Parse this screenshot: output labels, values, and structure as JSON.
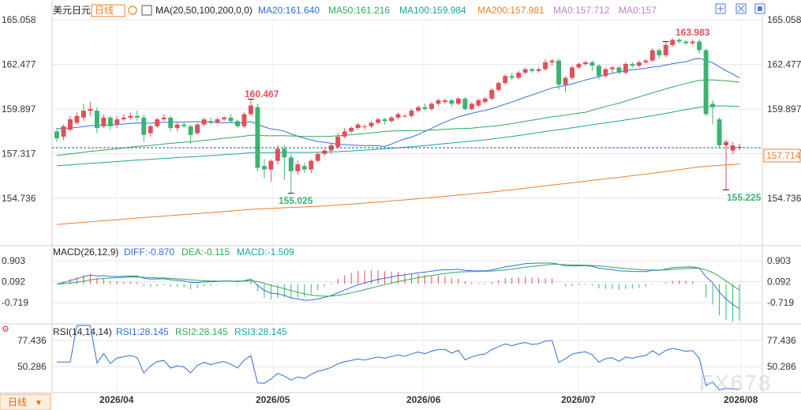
{
  "header": {
    "symbol": "美元日元",
    "period": "日线",
    "ma_label": "MA(20,50,100,200,0,0)",
    "ma20": "MA20:161.640",
    "ma50": "MA50:161.216",
    "ma100": "MA100:159.984",
    "ma200": "MA200:157.981",
    "ma0a": "MA0:157.712",
    "ma0b": "MA0:157"
  },
  "colors": {
    "up": "#e0505a",
    "down": "#3cb371",
    "ma20": "#2f6fd6",
    "ma50": "#2eaa55",
    "ma100": "#1ba39c",
    "ma200": "#f07d2a",
    "grid": "#e6e6e6",
    "axis_text": "#333333",
    "current_price_box": "#f07d2a"
  },
  "price_axis": {
    "ticks": [
      "165.058",
      "162.477",
      "159.897",
      "157.317",
      "154.736"
    ],
    "current_price": "157.714"
  },
  "annotations": {
    "high_1": "160.467",
    "low_1": "155.025",
    "high_2": "163.983",
    "low_2": "155.225"
  },
  "macd": {
    "label": "MACD(26,12,9)",
    "diff": "DIFF:-0.870",
    "dea": "DEA:-0.115",
    "macd": "MACD:-1.509",
    "ticks": [
      "0.903",
      "0.092",
      "-0.719"
    ]
  },
  "rsi": {
    "label": "RSI(14,14,14)",
    "rsi1": "RSI1:28.145",
    "rsi2": "RSI2:28.145",
    "rsi3": "RSI3:28.145",
    "ticks": [
      "77.436",
      "50.286"
    ]
  },
  "time_axis": [
    "2026/04",
    "2026/05",
    "2026/06",
    "2026/07",
    "2026/08"
  ],
  "footer": {
    "period_button": "日线"
  },
  "watermark": "FX678",
  "chart_data": {
    "type": "candlestick",
    "series": [
      {
        "o": 158.6,
        "c": 158.2,
        "h": 158.8,
        "l": 158.0
      },
      {
        "o": 158.3,
        "c": 158.9,
        "h": 159.0,
        "l": 158.1
      },
      {
        "o": 158.7,
        "c": 159.3,
        "h": 159.5,
        "l": 158.6
      },
      {
        "o": 159.1,
        "c": 159.5,
        "h": 159.7,
        "l": 159.0
      },
      {
        "o": 159.4,
        "c": 159.8,
        "h": 160.2,
        "l": 159.2
      },
      {
        "o": 159.8,
        "c": 159.9,
        "h": 160.3,
        "l": 159.5
      },
      {
        "o": 159.8,
        "c": 158.8,
        "h": 160.0,
        "l": 158.5
      },
      {
        "o": 158.9,
        "c": 159.4,
        "h": 159.6,
        "l": 158.8
      },
      {
        "o": 159.4,
        "c": 158.9,
        "h": 159.5,
        "l": 158.7
      },
      {
        "o": 159.0,
        "c": 159.3,
        "h": 159.5,
        "l": 158.8
      },
      {
        "o": 159.3,
        "c": 159.4,
        "h": 159.6,
        "l": 159.2
      },
      {
        "o": 159.4,
        "c": 159.5,
        "h": 159.7,
        "l": 159.3
      },
      {
        "o": 159.5,
        "c": 159.4,
        "h": 159.8,
        "l": 159.2
      },
      {
        "o": 159.4,
        "c": 158.4,
        "h": 159.6,
        "l": 158.0
      },
      {
        "o": 158.5,
        "c": 158.9,
        "h": 159.0,
        "l": 158.3
      },
      {
        "o": 158.9,
        "c": 159.3,
        "h": 159.4,
        "l": 158.8
      },
      {
        "o": 159.3,
        "c": 159.4,
        "h": 159.6,
        "l": 159.2
      },
      {
        "o": 159.4,
        "c": 158.8,
        "h": 159.5,
        "l": 158.6
      },
      {
        "o": 158.8,
        "c": 159.0,
        "h": 159.1,
        "l": 158.6
      },
      {
        "o": 159.0,
        "c": 158.9,
        "h": 159.2,
        "l": 158.8
      },
      {
        "o": 158.9,
        "c": 158.4,
        "h": 159.0,
        "l": 157.9
      },
      {
        "o": 158.5,
        "c": 159.0,
        "h": 159.1,
        "l": 158.4
      },
      {
        "o": 159.0,
        "c": 159.3,
        "h": 159.4,
        "l": 158.9
      },
      {
        "o": 159.2,
        "c": 159.1,
        "h": 159.4,
        "l": 159.0
      },
      {
        "o": 159.1,
        "c": 159.3,
        "h": 159.4,
        "l": 159.0
      },
      {
        "o": 159.3,
        "c": 159.4,
        "h": 159.5,
        "l": 159.2
      },
      {
        "o": 159.4,
        "c": 159.2,
        "h": 159.6,
        "l": 159.1
      },
      {
        "o": 159.2,
        "c": 158.9,
        "h": 159.3,
        "l": 158.8
      },
      {
        "o": 158.9,
        "c": 159.6,
        "h": 159.7,
        "l": 158.8
      },
      {
        "o": 159.6,
        "c": 160.1,
        "h": 160.467,
        "l": 159.5
      },
      {
        "o": 160.0,
        "c": 156.5,
        "h": 160.2,
        "l": 156.3
      },
      {
        "o": 156.6,
        "c": 156.4,
        "h": 157.0,
        "l": 155.9
      },
      {
        "o": 156.4,
        "c": 156.9,
        "h": 157.0,
        "l": 155.7
      },
      {
        "o": 156.9,
        "c": 157.6,
        "h": 157.8,
        "l": 156.7
      },
      {
        "o": 157.6,
        "c": 157.1,
        "h": 157.8,
        "l": 155.8
      },
      {
        "o": 157.1,
        "c": 156.3,
        "h": 157.3,
        "l": 155.025
      },
      {
        "o": 156.3,
        "c": 156.7,
        "h": 156.9,
        "l": 156.1
      },
      {
        "o": 156.6,
        "c": 156.4,
        "h": 156.8,
        "l": 156.2
      },
      {
        "o": 156.4,
        "c": 156.9,
        "h": 157.0,
        "l": 156.2
      },
      {
        "o": 156.9,
        "c": 157.3,
        "h": 157.4,
        "l": 156.8
      },
      {
        "o": 157.3,
        "c": 157.5,
        "h": 157.6,
        "l": 157.2
      },
      {
        "o": 157.5,
        "c": 157.8,
        "h": 157.9,
        "l": 157.3
      },
      {
        "o": 157.7,
        "c": 158.3,
        "h": 158.5,
        "l": 157.6
      },
      {
        "o": 158.3,
        "c": 158.6,
        "h": 158.8,
        "l": 158.2
      },
      {
        "o": 158.6,
        "c": 158.8,
        "h": 158.9,
        "l": 158.5
      },
      {
        "o": 158.8,
        "c": 159.0,
        "h": 159.1,
        "l": 158.7
      },
      {
        "o": 158.9,
        "c": 158.9,
        "h": 159.0,
        "l": 158.7
      },
      {
        "o": 158.9,
        "c": 159.1,
        "h": 159.2,
        "l": 158.8
      },
      {
        "o": 159.1,
        "c": 159.3,
        "h": 159.4,
        "l": 159.0
      },
      {
        "o": 159.3,
        "c": 159.2,
        "h": 159.4,
        "l": 159.0
      },
      {
        "o": 159.2,
        "c": 159.4,
        "h": 159.5,
        "l": 159.1
      },
      {
        "o": 159.4,
        "c": 159.6,
        "h": 159.7,
        "l": 159.3
      },
      {
        "o": 159.5,
        "c": 159.5,
        "h": 159.6,
        "l": 159.4
      },
      {
        "o": 159.5,
        "c": 159.8,
        "h": 159.9,
        "l": 159.4
      },
      {
        "o": 159.8,
        "c": 160.0,
        "h": 160.1,
        "l": 159.7
      },
      {
        "o": 160.0,
        "c": 159.9,
        "h": 160.2,
        "l": 159.8
      },
      {
        "o": 159.9,
        "c": 160.2,
        "h": 160.3,
        "l": 159.8
      },
      {
        "o": 160.2,
        "c": 160.4,
        "h": 160.5,
        "l": 160.1
      },
      {
        "o": 160.3,
        "c": 160.4,
        "h": 160.5,
        "l": 160.2
      },
      {
        "o": 160.4,
        "c": 160.2,
        "h": 160.5,
        "l": 160.0
      },
      {
        "o": 160.2,
        "c": 160.5,
        "h": 160.6,
        "l": 160.1
      },
      {
        "o": 160.5,
        "c": 159.9,
        "h": 160.6,
        "l": 159.8
      },
      {
        "o": 159.9,
        "c": 160.2,
        "h": 160.3,
        "l": 159.8
      },
      {
        "o": 160.1,
        "c": 160.4,
        "h": 160.5,
        "l": 160.0
      },
      {
        "o": 160.3,
        "c": 160.5,
        "h": 160.6,
        "l": 160.2
      },
      {
        "o": 160.5,
        "c": 161.0,
        "h": 161.1,
        "l": 160.4
      },
      {
        "o": 161.0,
        "c": 161.4,
        "h": 161.5,
        "l": 160.9
      },
      {
        "o": 161.4,
        "c": 161.8,
        "h": 161.9,
        "l": 161.3
      },
      {
        "o": 161.8,
        "c": 161.7,
        "h": 162.0,
        "l": 161.6
      },
      {
        "o": 161.7,
        "c": 162.0,
        "h": 162.1,
        "l": 161.6
      },
      {
        "o": 162.0,
        "c": 162.2,
        "h": 162.3,
        "l": 161.9
      },
      {
        "o": 162.2,
        "c": 162.1,
        "h": 162.3,
        "l": 162.0
      },
      {
        "o": 162.1,
        "c": 162.2,
        "h": 162.3,
        "l": 162.0
      },
      {
        "o": 162.2,
        "c": 162.6,
        "h": 162.8,
        "l": 162.1
      },
      {
        "o": 162.6,
        "c": 162.7,
        "h": 162.8,
        "l": 162.4
      },
      {
        "o": 162.7,
        "c": 161.3,
        "h": 162.8,
        "l": 161.0
      },
      {
        "o": 161.3,
        "c": 161.7,
        "h": 161.8,
        "l": 160.9
      },
      {
        "o": 161.7,
        "c": 162.3,
        "h": 162.4,
        "l": 161.6
      },
      {
        "o": 162.3,
        "c": 162.5,
        "h": 162.6,
        "l": 162.2
      },
      {
        "o": 162.5,
        "c": 162.6,
        "h": 162.7,
        "l": 162.4
      },
      {
        "o": 162.6,
        "c": 162.4,
        "h": 162.7,
        "l": 162.1
      },
      {
        "o": 162.4,
        "c": 161.8,
        "h": 162.5,
        "l": 161.6
      },
      {
        "o": 161.8,
        "c": 162.2,
        "h": 162.3,
        "l": 161.7
      },
      {
        "o": 162.2,
        "c": 162.3,
        "h": 162.4,
        "l": 162.0
      },
      {
        "o": 162.3,
        "c": 162.0,
        "h": 162.4,
        "l": 161.9
      },
      {
        "o": 162.0,
        "c": 162.5,
        "h": 162.6,
        "l": 161.9
      },
      {
        "o": 162.5,
        "c": 162.4,
        "h": 162.6,
        "l": 162.3
      },
      {
        "o": 162.4,
        "c": 162.6,
        "h": 162.7,
        "l": 162.3
      },
      {
        "o": 162.6,
        "c": 162.7,
        "h": 162.8,
        "l": 162.5
      },
      {
        "o": 162.7,
        "c": 163.3,
        "h": 163.4,
        "l": 162.6
      },
      {
        "o": 163.3,
        "c": 163.0,
        "h": 163.4,
        "l": 162.8
      },
      {
        "o": 163.0,
        "c": 163.6,
        "h": 163.8,
        "l": 162.9
      },
      {
        "o": 163.6,
        "c": 163.9,
        "h": 163.983,
        "l": 163.5
      },
      {
        "o": 163.9,
        "c": 163.8,
        "h": 163.983,
        "l": 163.7
      },
      {
        "o": 163.8,
        "c": 163.7,
        "h": 163.9,
        "l": 163.6
      },
      {
        "o": 163.7,
        "c": 163.8,
        "h": 163.9,
        "l": 163.6
      },
      {
        "o": 163.8,
        "c": 163.3,
        "h": 163.9,
        "l": 163.1
      },
      {
        "o": 163.3,
        "c": 159.6,
        "h": 163.4,
        "l": 159.5
      },
      {
        "o": 160.2,
        "c": 160.0,
        "h": 160.4,
        "l": 159.0
      },
      {
        "o": 159.3,
        "c": 157.8,
        "h": 159.4,
        "l": 157.6
      },
      {
        "o": 157.8,
        "c": 158.0,
        "h": 158.1,
        "l": 155.225
      },
      {
        "o": 157.5,
        "c": 157.8,
        "h": 158.0,
        "l": 157.3
      },
      {
        "o": 157.7,
        "c": 157.714,
        "h": 157.9,
        "l": 157.5
      }
    ],
    "y_range": [
      154.0,
      165.5
    ]
  }
}
